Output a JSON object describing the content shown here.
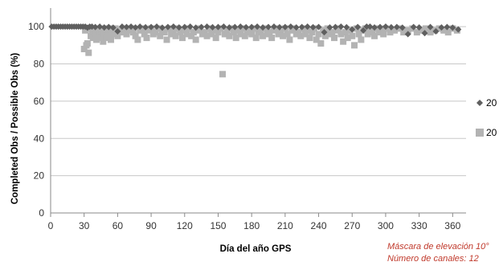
{
  "chart_data": {
    "type": "scatter",
    "title": "",
    "xlabel": "Día del año GPS",
    "ylabel": "Completed Obs / Possible Obs (%)",
    "xlim": [
      0,
      372
    ],
    "ylim": [
      0,
      110
    ],
    "xticks": [
      0,
      30,
      60,
      90,
      120,
      150,
      180,
      210,
      240,
      270,
      300,
      330,
      360
    ],
    "yticks": [
      0,
      20,
      40,
      60,
      80,
      100
    ],
    "grid": "horizontal",
    "legend_position": "right",
    "series": [
      {
        "name": "20",
        "marker": "diamond",
        "color": "#5f5f5f",
        "points": [
          [
            1,
            100
          ],
          [
            3,
            100
          ],
          [
            5,
            100
          ],
          [
            7,
            100
          ],
          [
            9,
            100
          ],
          [
            11,
            100
          ],
          [
            13,
            100
          ],
          [
            15,
            100
          ],
          [
            17,
            100
          ],
          [
            19,
            100
          ],
          [
            21,
            100
          ],
          [
            23,
            100
          ],
          [
            25,
            100
          ],
          [
            27,
            100
          ],
          [
            29,
            100
          ],
          [
            31,
            100
          ],
          [
            33,
            99.5
          ],
          [
            35,
            100
          ],
          [
            37,
            100
          ],
          [
            40,
            99.8
          ],
          [
            44,
            100
          ],
          [
            48,
            99.6
          ],
          [
            52,
            99.8
          ],
          [
            56,
            99.5
          ],
          [
            60,
            97.5
          ],
          [
            64,
            100
          ],
          [
            68,
            99.8
          ],
          [
            72,
            100
          ],
          [
            76,
            99.6
          ],
          [
            80,
            100
          ],
          [
            85,
            99.7
          ],
          [
            90,
            99.8
          ],
          [
            95,
            100
          ],
          [
            100,
            99.5
          ],
          [
            105,
            99.8
          ],
          [
            110,
            100
          ],
          [
            115,
            99.6
          ],
          [
            120,
            99.8
          ],
          [
            125,
            100
          ],
          [
            130,
            99.5
          ],
          [
            135,
            99.8
          ],
          [
            140,
            100
          ],
          [
            145,
            99.7
          ],
          [
            150,
            99.8
          ],
          [
            155,
            100
          ],
          [
            160,
            99.6
          ],
          [
            165,
            99.8
          ],
          [
            170,
            100
          ],
          [
            175,
            99.7
          ],
          [
            180,
            99.8
          ],
          [
            185,
            100
          ],
          [
            190,
            99.6
          ],
          [
            195,
            99.8
          ],
          [
            200,
            100
          ],
          [
            205,
            99.7
          ],
          [
            210,
            99.8
          ],
          [
            215,
            100
          ],
          [
            220,
            99.6
          ],
          [
            225,
            99.8
          ],
          [
            230,
            100
          ],
          [
            235,
            99.7
          ],
          [
            240,
            99.8
          ],
          [
            245,
            97.0
          ],
          [
            250,
            99.6
          ],
          [
            255,
            99.8
          ],
          [
            260,
            100
          ],
          [
            265,
            99.7
          ],
          [
            270,
            98.5
          ],
          [
            275,
            99.8
          ],
          [
            280,
            98.0
          ],
          [
            283,
            100
          ],
          [
            286,
            100
          ],
          [
            290,
            99.6
          ],
          [
            295,
            99.8
          ],
          [
            300,
            100
          ],
          [
            305,
            99.7
          ],
          [
            310,
            99.8
          ],
          [
            315,
            99.5
          ],
          [
            320,
            96.0
          ],
          [
            325,
            99.8
          ],
          [
            330,
            99.6
          ],
          [
            335,
            96.5
          ],
          [
            340,
            99.8
          ],
          [
            345,
            97.5
          ],
          [
            350,
            99.6
          ],
          [
            355,
            99.8
          ],
          [
            360,
            99.5
          ],
          [
            365,
            98.5
          ]
        ]
      },
      {
        "name": "20",
        "marker": "square",
        "color": "#b3b3b3",
        "points": [
          [
            30,
            88
          ],
          [
            31,
            98
          ],
          [
            32,
            90
          ],
          [
            33,
            91
          ],
          [
            34,
            86
          ],
          [
            35,
            99
          ],
          [
            36,
            95
          ],
          [
            37,
            97
          ],
          [
            38,
            94
          ],
          [
            39,
            98
          ],
          [
            40,
            96
          ],
          [
            41,
            93
          ],
          [
            42,
            99
          ],
          [
            43,
            95
          ],
          [
            44,
            97
          ],
          [
            45,
            94
          ],
          [
            46,
            98
          ],
          [
            47,
            92
          ],
          [
            48,
            96
          ],
          [
            49,
            99
          ],
          [
            50,
            94
          ],
          [
            51,
            97
          ],
          [
            52,
            95
          ],
          [
            53,
            99
          ],
          [
            54,
            93
          ],
          [
            55,
            98
          ],
          [
            56,
            96
          ],
          [
            58,
            99
          ],
          [
            60,
            95
          ],
          [
            62,
            98
          ],
          [
            64,
            97
          ],
          [
            66,
            99
          ],
          [
            68,
            96
          ],
          [
            70,
            98
          ],
          [
            72,
            99
          ],
          [
            74,
            97
          ],
          [
            76,
            95
          ],
          [
            78,
            93
          ],
          [
            80,
            98
          ],
          [
            82,
            99
          ],
          [
            84,
            96
          ],
          [
            86,
            94
          ],
          [
            88,
            98
          ],
          [
            90,
            99
          ],
          [
            92,
            96
          ],
          [
            94,
            97
          ],
          [
            96,
            99
          ],
          [
            98,
            95
          ],
          [
            100,
            98
          ],
          [
            102,
            97
          ],
          [
            104,
            93
          ],
          [
            106,
            99
          ],
          [
            108,
            96
          ],
          [
            110,
            98
          ],
          [
            112,
            95
          ],
          [
            114,
            99
          ],
          [
            116,
            97
          ],
          [
            118,
            94
          ],
          [
            120,
            98
          ],
          [
            122,
            96
          ],
          [
            124,
            99
          ],
          [
            126,
            95
          ],
          [
            128,
            97
          ],
          [
            130,
            93
          ],
          [
            132,
            98
          ],
          [
            134,
            99
          ],
          [
            136,
            96
          ],
          [
            138,
            97
          ],
          [
            140,
            95
          ],
          [
            142,
            99
          ],
          [
            144,
            96
          ],
          [
            146,
            98
          ],
          [
            148,
            94
          ],
          [
            150,
            97
          ],
          [
            152,
            99
          ],
          [
            154,
            74.5
          ],
          [
            156,
            96
          ],
          [
            158,
            98
          ],
          [
            160,
            95
          ],
          [
            162,
            99
          ],
          [
            164,
            97
          ],
          [
            166,
            94
          ],
          [
            168,
            98
          ],
          [
            170,
            96
          ],
          [
            172,
            99
          ],
          [
            174,
            95
          ],
          [
            176,
            97
          ],
          [
            178,
            98
          ],
          [
            180,
            96
          ],
          [
            182,
            99
          ],
          [
            184,
            94
          ],
          [
            186,
            97
          ],
          [
            188,
            98
          ],
          [
            190,
            95
          ],
          [
            192,
            99
          ],
          [
            194,
            96
          ],
          [
            196,
            97
          ],
          [
            198,
            94
          ],
          [
            200,
            98
          ],
          [
            202,
            99
          ],
          [
            204,
            96
          ],
          [
            206,
            97
          ],
          [
            208,
            95
          ],
          [
            210,
            99
          ],
          [
            212,
            96
          ],
          [
            214,
            93
          ],
          [
            216,
            98
          ],
          [
            218,
            99
          ],
          [
            220,
            96
          ],
          [
            222,
            97
          ],
          [
            224,
            95
          ],
          [
            226,
            99
          ],
          [
            228,
            96
          ],
          [
            230,
            98
          ],
          [
            232,
            94
          ],
          [
            234,
            97
          ],
          [
            236,
            99
          ],
          [
            238,
            93
          ],
          [
            240,
            96
          ],
          [
            242,
            91
          ],
          [
            244,
            98
          ],
          [
            246,
            95
          ],
          [
            248,
            99
          ],
          [
            250,
            96
          ],
          [
            252,
            97
          ],
          [
            254,
            94
          ],
          [
            256,
            98
          ],
          [
            258,
            99
          ],
          [
            260,
            96
          ],
          [
            262,
            92
          ],
          [
            264,
            97
          ],
          [
            266,
            94
          ],
          [
            268,
            98
          ],
          [
            270,
            95
          ],
          [
            272,
            90
          ],
          [
            274,
            99
          ],
          [
            276,
            96
          ],
          [
            278,
            93
          ],
          [
            280,
            98
          ],
          [
            282,
            99
          ],
          [
            284,
            96
          ],
          [
            286,
            98
          ],
          [
            288,
            97
          ],
          [
            290,
            95
          ],
          [
            292,
            99
          ],
          [
            294,
            97
          ],
          [
            296,
            98
          ],
          [
            298,
            96
          ],
          [
            300,
            99
          ],
          [
            304,
            97
          ],
          [
            308,
            98
          ],
          [
            312,
            99
          ],
          [
            316,
            97
          ],
          [
            320,
            98
          ],
          [
            324,
            99
          ],
          [
            328,
            97
          ],
          [
            332,
            98
          ],
          [
            336,
            99
          ],
          [
            340,
            97
          ],
          [
            344,
            98
          ],
          [
            348,
            99
          ],
          [
            352,
            98
          ],
          [
            356,
            97
          ],
          [
            360,
            99
          ],
          [
            364,
            98
          ]
        ]
      }
    ]
  },
  "annotations": {
    "mask": "Máscara de elevación 10°",
    "channels": "Número de canales: 12"
  }
}
